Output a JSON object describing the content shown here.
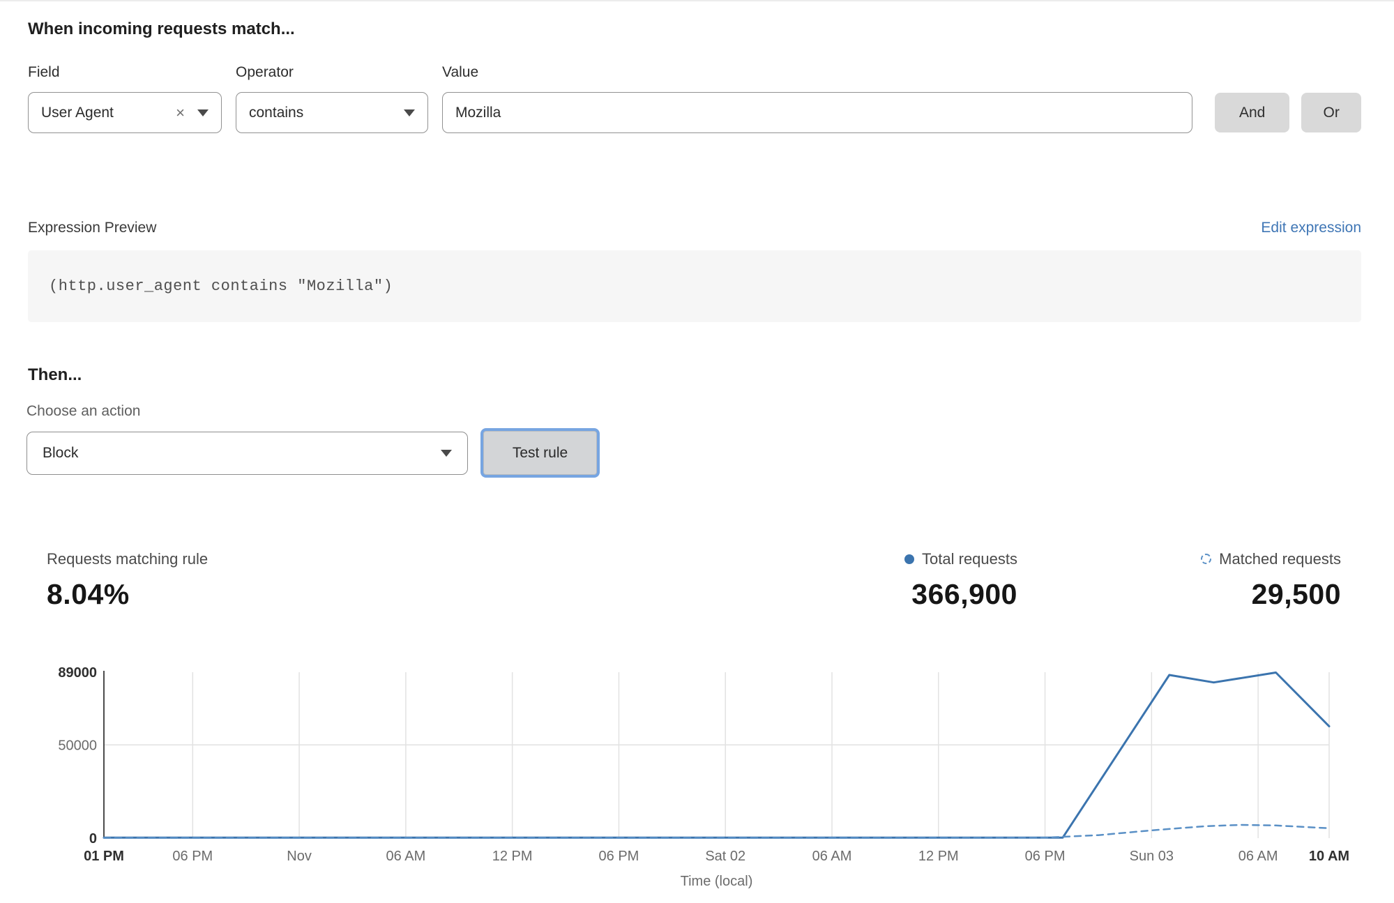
{
  "match": {
    "title": "When incoming requests match...",
    "field_label": "Field",
    "field_value": "User Agent",
    "operator_label": "Operator",
    "operator_value": "contains",
    "value_label": "Value",
    "value_text": "Mozilla",
    "and_label": "And",
    "or_label": "Or",
    "clear_icon": "×"
  },
  "expression": {
    "label": "Expression Preview",
    "edit_link": "Edit expression",
    "code": "(http.user_agent contains \"Mozilla\")"
  },
  "then": {
    "title": "Then...",
    "action_label": "Choose an action",
    "action_value": "Block",
    "test_button": "Test rule"
  },
  "stats": {
    "matching_label": "Requests matching rule",
    "matching_value": "8.04%",
    "total_label": "Total requests",
    "total_value": "366,900",
    "matched_label": "Matched requests",
    "matched_value": "29,500"
  },
  "colors": {
    "accent_blue": "#3b74ae",
    "dashed_blue": "#5a90c6",
    "link_blue": "#3f76b5",
    "grid": "#e2e2e2",
    "axis": "#4c4c4c",
    "tick": "#6b6b6b",
    "tick_bold": "#2f2f2f",
    "button_gray": "#d9d9d9"
  },
  "chart_data": {
    "type": "line",
    "xlabel": "Time (local)",
    "grid": true,
    "legend_position": "above-right",
    "x_max_hours": 69,
    "ylim": [
      0,
      89000
    ],
    "y_ticks": [
      {
        "value": 0,
        "label": "0",
        "bold": true
      },
      {
        "value": 50000,
        "label": "50000",
        "bold": false
      },
      {
        "value": 89000,
        "label": "89000",
        "bold": true
      }
    ],
    "x_ticks": [
      {
        "hour": 0,
        "label": "01 PM",
        "bold": true
      },
      {
        "hour": 5,
        "label": "06 PM",
        "bold": false
      },
      {
        "hour": 11,
        "label": "Nov",
        "bold": false
      },
      {
        "hour": 17,
        "label": "06 AM",
        "bold": false
      },
      {
        "hour": 23,
        "label": "12 PM",
        "bold": false
      },
      {
        "hour": 29,
        "label": "06 PM",
        "bold": false
      },
      {
        "hour": 35,
        "label": "Sat 02",
        "bold": false
      },
      {
        "hour": 41,
        "label": "06 AM",
        "bold": false
      },
      {
        "hour": 47,
        "label": "12 PM",
        "bold": false
      },
      {
        "hour": 53,
        "label": "06 PM",
        "bold": false
      },
      {
        "hour": 59,
        "label": "Sun 03",
        "bold": false
      },
      {
        "hour": 65,
        "label": "06 AM",
        "bold": false
      },
      {
        "hour": 69,
        "label": "10 AM",
        "bold": true
      }
    ],
    "series": [
      {
        "name": "Total requests",
        "style": "solid",
        "points": [
          [
            0,
            300
          ],
          [
            5,
            300
          ],
          [
            11,
            300
          ],
          [
            17,
            300
          ],
          [
            23,
            300
          ],
          [
            29,
            300
          ],
          [
            35,
            300
          ],
          [
            41,
            300
          ],
          [
            47,
            300
          ],
          [
            51,
            300
          ],
          [
            54,
            300
          ],
          [
            60,
            87500
          ],
          [
            62.5,
            83500
          ],
          [
            66,
            88800
          ],
          [
            69,
            60000
          ]
        ]
      },
      {
        "name": "Matched requests",
        "style": "dashed",
        "points": [
          [
            0,
            150
          ],
          [
            5,
            150
          ],
          [
            11,
            150
          ],
          [
            17,
            150
          ],
          [
            23,
            150
          ],
          [
            29,
            150
          ],
          [
            35,
            150
          ],
          [
            41,
            150
          ],
          [
            47,
            150
          ],
          [
            53,
            250
          ],
          [
            56,
            1600
          ],
          [
            59,
            4200
          ],
          [
            62,
            6400
          ],
          [
            64,
            7100
          ],
          [
            66,
            6800
          ],
          [
            69,
            5300
          ]
        ]
      }
    ]
  }
}
